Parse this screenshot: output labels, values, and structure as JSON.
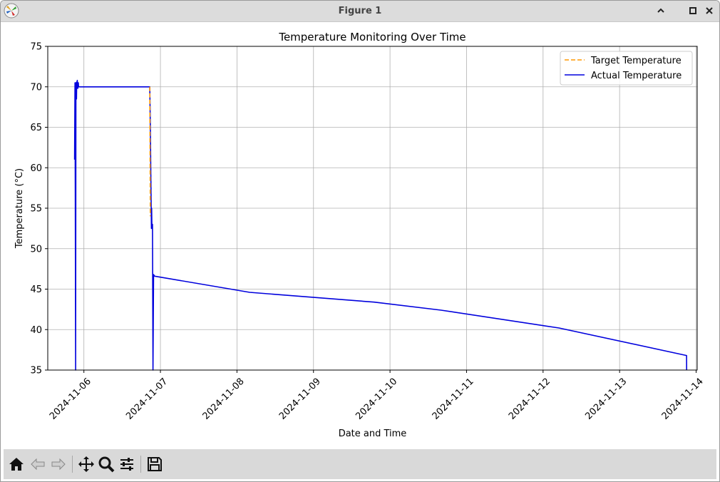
{
  "window": {
    "title": "Figure 1"
  },
  "toolbar": {
    "buttons": [
      "home-icon",
      "back-icon",
      "forward-icon",
      "pan-icon",
      "zoom-icon",
      "configure-subplots-icon",
      "save-icon"
    ]
  },
  "colors": {
    "target": "#ff9900",
    "actual": "#0000dd",
    "grid": "#b0b0b0"
  },
  "chart_data": {
    "type": "line",
    "title": "Temperature Monitoring Over Time",
    "xlabel": "Date and Time",
    "ylabel": "Temperature (°C)",
    "xlim": [
      "2024-11-05 12:40",
      "2024-11-14 00:20"
    ],
    "ylim": [
      35,
      75
    ],
    "yticks": [
      35,
      40,
      45,
      50,
      55,
      60,
      65,
      70,
      75
    ],
    "xticks": [
      "2024-11-06",
      "2024-11-07",
      "2024-11-08",
      "2024-11-09",
      "2024-11-10",
      "2024-11-11",
      "2024-11-12",
      "2024-11-13",
      "2024-11-14"
    ],
    "grid": true,
    "legend_position": "upper right",
    "series": [
      {
        "name": "Target Temperature",
        "style": "dashed",
        "x": [
          "2024-11-06 20:40",
          "2024-11-06 20:45",
          "2024-11-06 20:50"
        ],
        "y": [
          70.0,
          62.0,
          54.0
        ]
      },
      {
        "name": "Actual Temperature",
        "style": "solid",
        "x": [
          "2024-11-05 21:05",
          "2024-11-05 21:12",
          "2024-11-05 21:18",
          "2024-11-05 21:25",
          "2024-11-05 21:30",
          "2024-11-05 21:40",
          "2024-11-05 21:45",
          "2024-11-05 21:48",
          "2024-11-05 21:55",
          "2024-11-05 22:05",
          "2024-11-05 22:15",
          "2024-11-05 22:20",
          "2024-11-05 22:35",
          "2024-11-05 23:00",
          "2024-11-06 20:40",
          "2024-11-06 20:50",
          "2024-11-06 21:00",
          "2024-11-06 21:10",
          "2024-11-06 21:15",
          "2024-11-06 21:20",
          "2024-11-06 21:30",
          "2024-11-06 21:40",
          "2024-11-06 21:50",
          "2024-11-06 21:52",
          "2024-11-06 22:10",
          "2024-11-08 04:00",
          "2024-11-09 19:00",
          "2024-11-10 16:00",
          "2024-11-12 05:00",
          "2024-11-13 21:00",
          "2024-11-13 21:02"
        ],
        "y": [
          61.0,
          70.5,
          57.0,
          35.0,
          70.5,
          68.5,
          70.6,
          70.0,
          70.8,
          69.8,
          70.5,
          70.0,
          70.0,
          70.0,
          70.0,
          65.0,
          59.0,
          52.5,
          55.0,
          52.5,
          53.0,
          35.0,
          46.5,
          46.8,
          46.6,
          44.6,
          43.4,
          42.4,
          40.2,
          36.8,
          35.0
        ]
      }
    ]
  }
}
